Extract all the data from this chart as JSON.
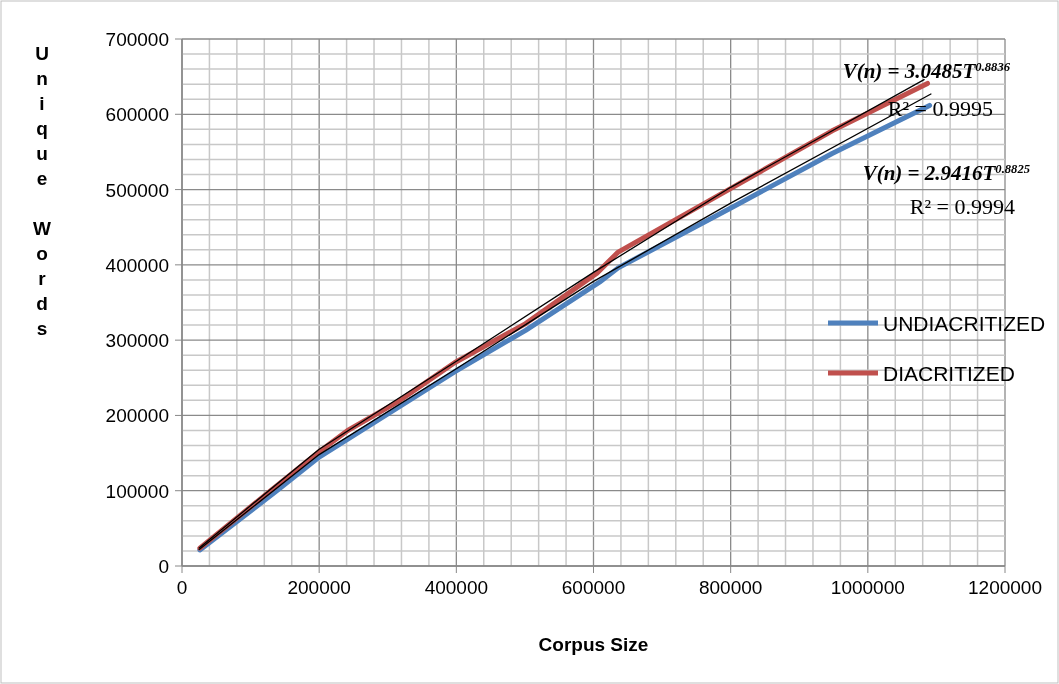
{
  "chart_data": {
    "type": "line",
    "xlabel": "Corpus Size",
    "ylabel": "Unique Words",
    "xlim": [
      0,
      1200000
    ],
    "ylim": [
      0,
      700000
    ],
    "xticks": [
      0,
      {
        "value": 40000,
        "label": null
      },
      {
        "value": 80000,
        "label": null
      },
      {
        "value": 120000,
        "label": null
      },
      {
        "value": 160000,
        "label": null
      },
      200000,
      {
        "value": 240000,
        "label": null
      },
      {
        "value": 280000,
        "label": null
      },
      {
        "value": 320000,
        "label": null
      },
      {
        "value": 360000,
        "label": null
      },
      400000,
      {
        "value": 440000,
        "label": null
      },
      {
        "value": 480000,
        "label": null
      },
      {
        "value": 520000,
        "label": null
      },
      {
        "value": 560000,
        "label": null
      },
      600000,
      {
        "value": 640000,
        "label": null
      },
      {
        "value": 680000,
        "label": null
      },
      {
        "value": 720000,
        "label": null
      },
      {
        "value": 760000,
        "label": null
      },
      800000,
      {
        "value": 840000,
        "label": null
      },
      {
        "value": 880000,
        "label": null
      },
      {
        "value": 920000,
        "label": null
      },
      {
        "value": 960000,
        "label": null
      },
      1000000,
      {
        "value": 1040000,
        "label": null
      },
      {
        "value": 1080000,
        "label": null
      },
      {
        "value": 1120000,
        "label": null
      },
      {
        "value": 1160000,
        "label": null
      },
      1200000
    ],
    "yticks": [
      0,
      {
        "value": 20000,
        "label": null
      },
      {
        "value": 40000,
        "label": null
      },
      {
        "value": 60000,
        "label": null
      },
      {
        "value": 80000,
        "label": null
      },
      100000,
      {
        "value": 120000,
        "label": null
      },
      {
        "value": 140000,
        "label": null
      },
      {
        "value": 160000,
        "label": null
      },
      {
        "value": 180000,
        "label": null
      },
      200000,
      {
        "value": 220000,
        "label": null
      },
      {
        "value": 240000,
        "label": null
      },
      {
        "value": 260000,
        "label": null
      },
      {
        "value": 280000,
        "label": null
      },
      300000,
      {
        "value": 320000,
        "label": null
      },
      {
        "value": 340000,
        "label": null
      },
      {
        "value": 360000,
        "label": null
      },
      {
        "value": 380000,
        "label": null
      },
      400000,
      {
        "value": 420000,
        "label": null
      },
      {
        "value": 440000,
        "label": null
      },
      {
        "value": 460000,
        "label": null
      },
      {
        "value": 480000,
        "label": null
      },
      500000,
      {
        "value": 520000,
        "label": null
      },
      {
        "value": 540000,
        "label": null
      },
      {
        "value": 560000,
        "label": null
      },
      {
        "value": 580000,
        "label": null
      },
      600000,
      {
        "value": 620000,
        "label": null
      },
      {
        "value": 640000,
        "label": null
      },
      {
        "value": 660000,
        "label": null
      },
      {
        "value": 680000,
        "label": null
      },
      700000
    ],
    "grid": true,
    "legend": "right",
    "marker": "none",
    "series": [
      {
        "name": "UNDIACRITIZED",
        "color": "#4f81bd",
        "x": [
          26000,
          137700,
          200000,
          397400,
          501000,
          608700,
          636000,
          803000,
          948000,
          1090000
        ],
        "values": [
          21300,
          99500,
          144600,
          258000,
          313000,
          377000,
          396000,
          476800,
          548000,
          611700
        ]
      },
      {
        "name": "DIACRITIZED",
        "color": "#c0504d",
        "x": [
          26000,
          122000,
          200000,
          241600,
          314300,
          397400,
          501000,
          605000,
          636000,
          803000,
          948000,
          1087000
        ],
        "values": [
          23700,
          94800,
          151700,
          180000,
          218000,
          270000,
          322000,
          389000,
          417000,
          503000,
          578000,
          641000
        ]
      },
      {
        "color": "#000000",
        "x": [
          25000,
          200000,
          400000,
          600000,
          800000,
          1082000
        ],
        "values": [
          24000,
          155000,
          272000,
          390000,
          503000,
          646000
        ]
      },
      {
        "color": "#000000",
        "x": [
          25000,
          200000,
          400000,
          600000,
          800000,
          1092000
        ],
        "values": [
          22000,
          148000,
          262000,
          378000,
          482000,
          627000
        ]
      }
    ],
    "annotations": [
      "V(n) = 3.0485T$^{0.8836}$",
      "R² = 0.9995",
      "V(n) = 2.9416T$^{0.8825}$",
      "R² = 0.9994"
    ]
  }
}
